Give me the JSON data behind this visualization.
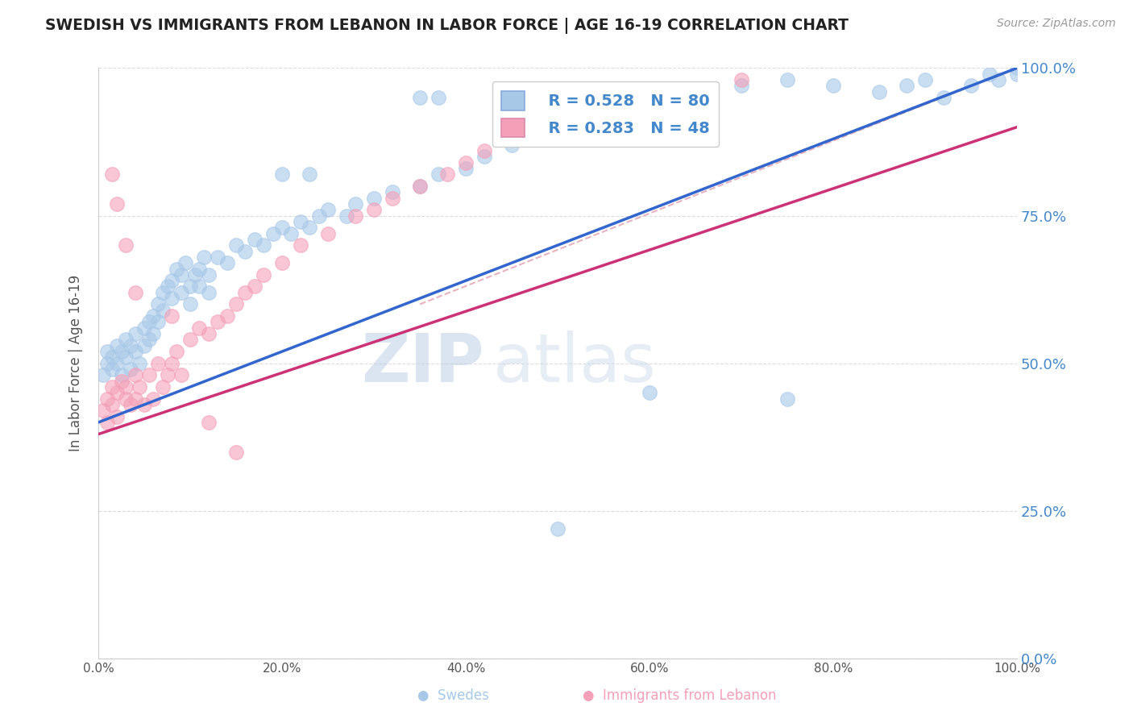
{
  "title": "SWEDISH VS IMMIGRANTS FROM LEBANON IN LABOR FORCE | AGE 16-19 CORRELATION CHART",
  "source": "Source: ZipAtlas.com",
  "ylabel": "In Labor Force | Age 16-19",
  "xlim": [
    0,
    1
  ],
  "ylim": [
    0,
    1
  ],
  "xtick_vals": [
    0.0,
    0.2,
    0.4,
    0.6,
    0.8,
    1.0
  ],
  "xtick_labels": [
    "0.0%",
    "20.0%",
    "40.0%",
    "60.0%",
    "80.0%",
    "100.0%"
  ],
  "ytick_vals": [
    0.0,
    0.25,
    0.5,
    0.75,
    1.0
  ],
  "ytick_labels_right": [
    "0.0%",
    "25.0%",
    "50.0%",
    "75.0%",
    "100.0%"
  ],
  "blue_color": "#a8c8e8",
  "pink_color": "#f4a0b8",
  "blue_line_color": "#3366cc",
  "pink_line_color": "#cc3377",
  "dashed_line_color": "#e0a0b0",
  "legend_R_blue": "R = 0.528",
  "legend_N_blue": "N = 80",
  "legend_R_pink": "R = 0.283",
  "legend_N_pink": "N = 48",
  "watermark_zip": "ZIP",
  "watermark_atlas": "atlas",
  "background_color": "#ffffff",
  "grid_color": "#dddddd",
  "title_color": "#222222",
  "axis_label_color": "#555555",
  "right_axis_color": "#4488cc",
  "bottom_label_blue": "Swedes",
  "bottom_label_pink": "Immigrants from Lebanon",
  "blue_line_x0": 0.0,
  "blue_line_y0": 0.4,
  "blue_line_x1": 1.0,
  "blue_line_y1": 1.0,
  "pink_line_x0": 0.0,
  "pink_line_y0": 0.38,
  "pink_line_x1": 1.0,
  "pink_line_y1": 0.9,
  "dash_line_x0": 0.35,
  "dash_line_y0": 0.6,
  "dash_line_x1": 1.0,
  "dash_line_y1": 1.0,
  "blue_scatter_x": [
    0.005,
    0.01,
    0.01,
    0.015,
    0.015,
    0.02,
    0.02,
    0.025,
    0.025,
    0.03,
    0.03,
    0.035,
    0.035,
    0.04,
    0.04,
    0.045,
    0.05,
    0.05,
    0.055,
    0.055,
    0.06,
    0.06,
    0.065,
    0.065,
    0.07,
    0.07,
    0.075,
    0.08,
    0.08,
    0.085,
    0.09,
    0.09,
    0.095,
    0.1,
    0.1,
    0.105,
    0.11,
    0.11,
    0.115,
    0.12,
    0.12,
    0.13,
    0.14,
    0.15,
    0.16,
    0.17,
    0.18,
    0.19,
    0.2,
    0.21,
    0.22,
    0.23,
    0.24,
    0.25,
    0.27,
    0.28,
    0.3,
    0.32,
    0.35,
    0.37,
    0.4,
    0.42,
    0.45,
    0.48,
    0.5,
    0.55,
    0.6,
    0.65,
    0.7,
    0.75,
    0.8,
    0.85,
    0.88,
    0.9,
    0.92,
    0.95,
    0.97,
    0.98,
    1.0,
    1.0
  ],
  "blue_scatter_y": [
    0.48,
    0.5,
    0.52,
    0.49,
    0.51,
    0.53,
    0.5,
    0.52,
    0.48,
    0.54,
    0.51,
    0.53,
    0.49,
    0.55,
    0.52,
    0.5,
    0.56,
    0.53,
    0.57,
    0.54,
    0.58,
    0.55,
    0.6,
    0.57,
    0.62,
    0.59,
    0.63,
    0.64,
    0.61,
    0.66,
    0.65,
    0.62,
    0.67,
    0.63,
    0.6,
    0.65,
    0.66,
    0.63,
    0.68,
    0.65,
    0.62,
    0.68,
    0.67,
    0.7,
    0.69,
    0.71,
    0.7,
    0.72,
    0.73,
    0.72,
    0.74,
    0.73,
    0.75,
    0.76,
    0.75,
    0.77,
    0.78,
    0.79,
    0.8,
    0.82,
    0.83,
    0.85,
    0.87,
    0.89,
    0.88,
    0.92,
    0.94,
    0.96,
    0.97,
    0.98,
    0.97,
    0.96,
    0.97,
    0.98,
    0.95,
    0.97,
    0.99,
    0.98,
    1.0,
    0.99
  ],
  "pink_scatter_x": [
    0.005,
    0.01,
    0.01,
    0.015,
    0.015,
    0.02,
    0.02,
    0.025,
    0.03,
    0.03,
    0.035,
    0.04,
    0.04,
    0.045,
    0.05,
    0.055,
    0.06,
    0.065,
    0.07,
    0.075,
    0.08,
    0.085,
    0.09,
    0.1,
    0.11,
    0.12,
    0.13,
    0.14,
    0.15,
    0.16,
    0.17,
    0.18,
    0.2,
    0.22,
    0.25,
    0.28,
    0.3,
    0.32,
    0.35,
    0.38,
    0.4,
    0.42,
    0.45,
    0.5,
    0.55,
    0.6,
    0.65,
    0.7
  ],
  "pink_scatter_y": [
    0.42,
    0.44,
    0.4,
    0.46,
    0.43,
    0.45,
    0.41,
    0.47,
    0.44,
    0.46,
    0.43,
    0.48,
    0.44,
    0.46,
    0.43,
    0.48,
    0.44,
    0.5,
    0.46,
    0.48,
    0.5,
    0.52,
    0.48,
    0.54,
    0.56,
    0.55,
    0.57,
    0.58,
    0.6,
    0.62,
    0.63,
    0.65,
    0.67,
    0.7,
    0.72,
    0.75,
    0.76,
    0.78,
    0.8,
    0.82,
    0.84,
    0.86,
    0.88,
    0.9,
    0.92,
    0.94,
    0.96,
    0.98
  ],
  "blue_outlier_x": [
    0.35,
    0.37,
    0.2,
    0.23,
    0.5,
    0.6,
    0.75
  ],
  "blue_outlier_y": [
    0.95,
    0.95,
    0.82,
    0.82,
    0.22,
    0.45,
    0.44
  ],
  "pink_outlier_x": [
    0.015,
    0.02,
    0.03,
    0.04,
    0.08,
    0.12,
    0.15
  ],
  "pink_outlier_y": [
    0.82,
    0.77,
    0.7,
    0.62,
    0.58,
    0.4,
    0.35
  ]
}
